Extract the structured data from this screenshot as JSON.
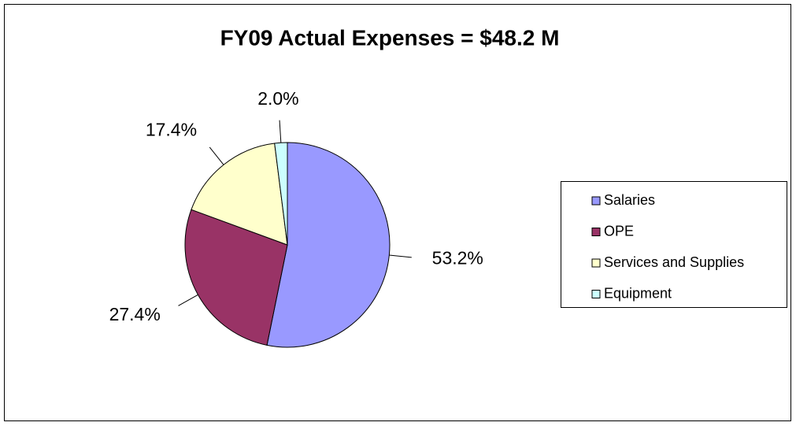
{
  "chart_data": {
    "type": "pie",
    "title": "FY09 Actual Expenses = $48.2 M",
    "categories": [
      "Salaries",
      "OPE",
      "Services and Supplies",
      "Equipment"
    ],
    "values": [
      53.2,
      27.4,
      17.4,
      2.0
    ],
    "value_labels": [
      "53.2%",
      "27.4%",
      "17.4%",
      "2.0%"
    ],
    "colors": [
      "#9999ff",
      "#993366",
      "#ffffcc",
      "#ccffff"
    ],
    "legend": "right"
  }
}
